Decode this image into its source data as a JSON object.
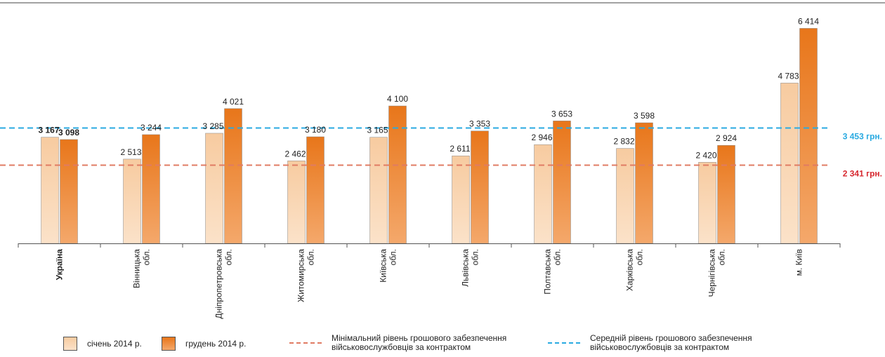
{
  "chart_data": {
    "type": "bar",
    "categories": [
      "Україна",
      "Вінницька обл.",
      "Дніпропетровська обл.",
      "Житомирська обл.",
      "Київська обл.",
      "Львівська обл.",
      "Полтавська обл.",
      "Харківська обл.",
      "Чернігівська обл.",
      "м. Київ"
    ],
    "category_lines": [
      [
        "Україна"
      ],
      [
        "Вінницька",
        "обл."
      ],
      [
        "Дніпропетровська",
        "обл."
      ],
      [
        "Житомирська",
        "обл."
      ],
      [
        "Київська",
        "обл."
      ],
      [
        "Львівська",
        "обл."
      ],
      [
        "Полтавська",
        "обл."
      ],
      [
        "Харківська",
        "обл."
      ],
      [
        "Чернігівська",
        "обл."
      ],
      [
        "м. Київ"
      ]
    ],
    "bold_categories": [
      "Україна"
    ],
    "series": [
      {
        "name": "січень 2014 р.",
        "color": "#f9cfa6",
        "values": [
          3167,
          2513,
          3285,
          2462,
          3165,
          2611,
          2946,
          2832,
          2420,
          4783
        ],
        "labels": [
          "3 167",
          "2 513",
          "3 285",
          "2 462",
          "3 165",
          "2 611",
          "2 946",
          "2 832",
          "2 420",
          "4 783"
        ]
      },
      {
        "name": "грудень 2014 р.",
        "color": "#ec7f22",
        "values": [
          3098,
          3244,
          4021,
          3180,
          4100,
          3353,
          3653,
          3598,
          2924,
          6414
        ],
        "labels": [
          "3 098",
          "3 244",
          "4 021",
          "3 180",
          "4 100",
          "3 353",
          "3 653",
          "3 598",
          "2 924",
          "6 414"
        ]
      }
    ],
    "reference_lines": [
      {
        "value": 3453,
        "label": "3 453 грн.",
        "color": "#29aae1"
      },
      {
        "value": 2341,
        "label": "2 341 грн.",
        "color": "#e07b63",
        "label_color": "#d7282f"
      }
    ],
    "ylim": [
      0,
      6800
    ],
    "grid": false
  },
  "legend": {
    "jan": "січень 2014 р.",
    "dec": "грудень 2014 р.",
    "min_line": [
      "Мінімальний рівень грошового забезпечення",
      "військовослужбовців за контрактом"
    ],
    "avg_line": [
      "Середній рівень грошового забезпечення",
      "військовослужбовців за контрактом"
    ]
  },
  "colors": {
    "jan_fill": "#f9cfa6",
    "dec_fill": "#ec7f22",
    "avg_line": "#29aae1",
    "min_line": "#e07b63"
  }
}
